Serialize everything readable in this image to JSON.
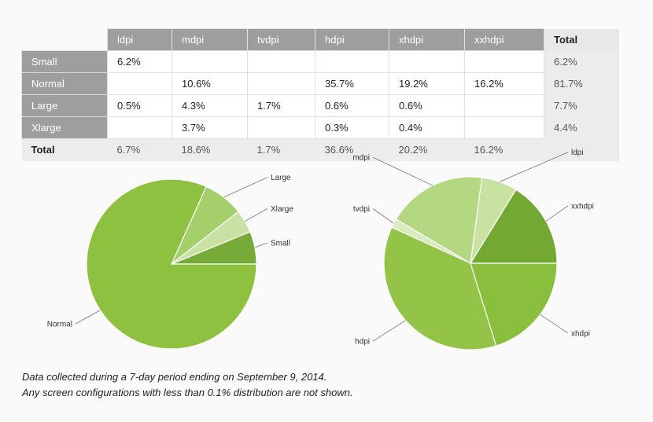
{
  "table": {
    "columns": [
      "ldpi",
      "mdpi",
      "tvdpi",
      "hdpi",
      "xhdpi",
      "xxhdpi"
    ],
    "total_label": "Total",
    "rows": [
      {
        "label": "Small",
        "cells": [
          "6.2%",
          "",
          "",
          "",
          "",
          ""
        ],
        "total": "6.2%"
      },
      {
        "label": "Normal",
        "cells": [
          "",
          "10.6%",
          "",
          "35.7%",
          "19.2%",
          "16.2%"
        ],
        "total": "81.7%"
      },
      {
        "label": "Large",
        "cells": [
          "0.5%",
          "4.3%",
          "1.7%",
          "0.6%",
          "0.6%",
          ""
        ],
        "total": "7.7%"
      },
      {
        "label": "Xlarge",
        "cells": [
          "",
          "3.7%",
          "",
          "0.3%",
          "0.4%",
          ""
        ],
        "total": "4.4%"
      }
    ],
    "footer": {
      "label": "Total",
      "cells": [
        "6.7%",
        "18.6%",
        "1.7%",
        "36.6%",
        "20.2%",
        "16.2%"
      ]
    }
  },
  "chart_data": [
    {
      "type": "pie",
      "categories": [
        "Small",
        "Xlarge",
        "Large",
        "Normal"
      ],
      "values": [
        6.2,
        4.4,
        7.7,
        81.7
      ],
      "colors": [
        "#76ab37",
        "#c8e2a3",
        "#a4cf6a",
        "#8fc140"
      ]
    },
    {
      "type": "pie",
      "categories": [
        "xxhdpi",
        "ldpi",
        "mdpi",
        "tvdpi",
        "hdpi",
        "xhdpi"
      ],
      "values": [
        16.2,
        6.7,
        18.6,
        1.7,
        36.6,
        20.2
      ],
      "colors": [
        "#73a933",
        "#c7e2a1",
        "#b4d781",
        "#d9ecc0",
        "#93c447",
        "#89bf3c"
      ]
    }
  ],
  "caption": {
    "line1": "Data collected during a 7-day period ending on September 9, 2014.",
    "line2": "Any screen configurations with less than 0.1% distribution are not shown."
  }
}
